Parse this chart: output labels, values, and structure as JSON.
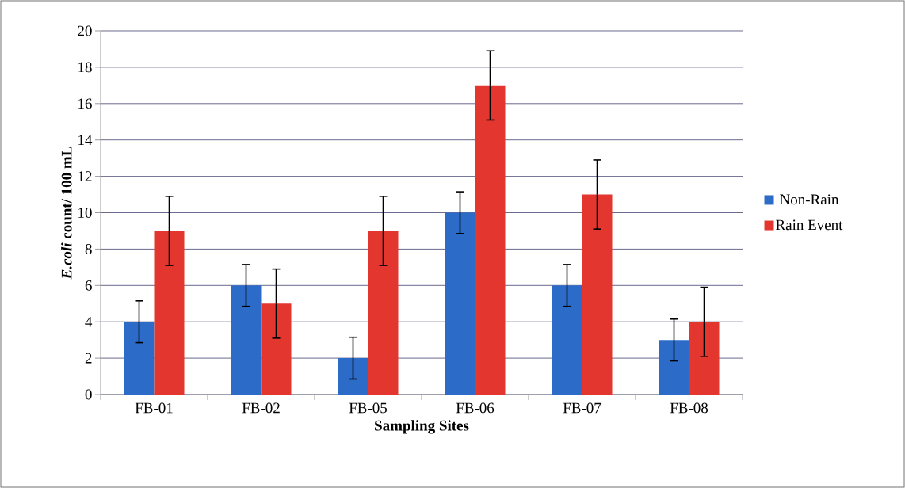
{
  "chart_data": {
    "type": "bar",
    "xlabel": "Sampling Sites",
    "ylabel": "*E.coli* count/ 100 mL",
    "categories": [
      "FB-01",
      "FB-02",
      "FB-05",
      "FB-06",
      "FB-07",
      "FB-08"
    ],
    "series": [
      {
        "name": "Non-Rain",
        "color": "#2c6cc8",
        "values": [
          4,
          6,
          2,
          10,
          6,
          3
        ],
        "errors": [
          1.15,
          1.15,
          1.15,
          1.15,
          1.15,
          1.15
        ]
      },
      {
        "name": "Rain Event",
        "color": "#e2362f",
        "values": [
          9,
          5,
          9,
          17,
          11,
          4
        ],
        "errors": [
          1.9,
          1.9,
          1.9,
          1.9,
          1.9,
          1.9
        ]
      }
    ],
    "ylim": [
      0,
      20
    ],
    "yticks": [
      0,
      2,
      4,
      6,
      8,
      10,
      12,
      14,
      16,
      18,
      20
    ],
    "grid": "y",
    "legend": "right"
  }
}
